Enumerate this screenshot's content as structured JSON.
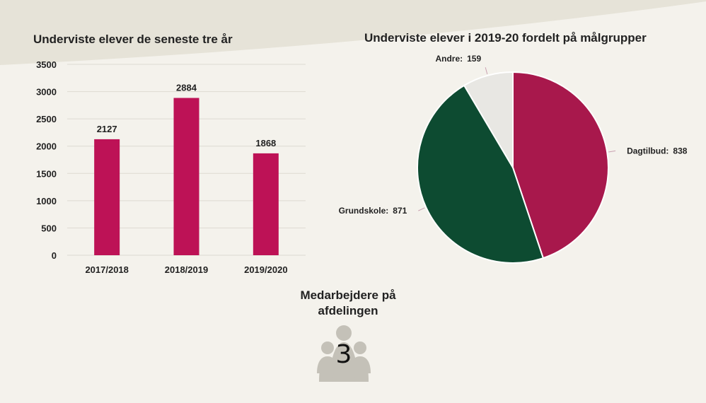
{
  "colors": {
    "background": "#f4f2ec",
    "wave": "#e6e3d8",
    "bar": "#bd1256",
    "grid": "#dddad2",
    "staff_icon": "#c4c1b8"
  },
  "chart_data": [
    {
      "type": "bar",
      "title": "Underviste elever de seneste tre år",
      "categories": [
        "2017/2018",
        "2018/2019",
        "2019/2020"
      ],
      "values": [
        2127,
        2884,
        1868
      ],
      "value_labels": [
        "2127",
        "2884",
        "1868"
      ],
      "ylim": [
        0,
        3500
      ],
      "yticks": [
        "0",
        "500",
        "1000",
        "1500",
        "2000",
        "2500",
        "3000",
        "3500"
      ],
      "xlabel": "",
      "ylabel": "",
      "grid": true
    },
    {
      "type": "pie",
      "title": "Underviste elever i 2019-20 fordelt på målgrupper",
      "slices": [
        {
          "label": "Dagtilbud",
          "value": 838,
          "value_text": "838",
          "color": "#a8184c"
        },
        {
          "label": "Grundskole",
          "value": 871,
          "value_text": "871",
          "color": "#0d4b31"
        },
        {
          "label": "Andre",
          "value": 159,
          "value_text": "159",
          "color": "#e8e7e3"
        }
      ]
    }
  ],
  "staff": {
    "label": "Medarbejdere på afdelingen",
    "count": "3",
    "icon": "people-group-icon"
  }
}
